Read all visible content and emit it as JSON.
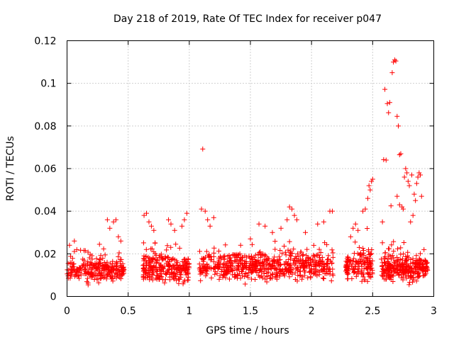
{
  "chart_data": {
    "type": "scatter",
    "title": "Day 218 of 2019, Rate Of TEC Index for receiver p047",
    "xlabel": "GPS time / hours",
    "ylabel": "ROTI / TECUs",
    "xlim": [
      0,
      3
    ],
    "ylim": [
      0,
      0.12
    ],
    "x_ticks": [
      0,
      0.5,
      1,
      1.5,
      2,
      2.5,
      3
    ],
    "x_tick_labels": [
      "0",
      "0.5",
      "1",
      "1.5",
      "2",
      "2.5",
      "3"
    ],
    "y_ticks": [
      0,
      0.02,
      0.04,
      0.06,
      0.08,
      0.1,
      0.12
    ],
    "y_tick_labels": [
      "0",
      "0.02",
      "0.04",
      "0.06",
      "0.08",
      "0.1",
      "0.12"
    ],
    "grid": true,
    "marker": "+",
    "color": "#ff0000",
    "series": [
      {
        "name": "p047",
        "segments": [
          {
            "x_start": 0.0,
            "x_end": 0.47,
            "base": 0.012,
            "spread": 0.007,
            "count": 260
          },
          {
            "x_start": 0.62,
            "x_end": 1.0,
            "base": 0.013,
            "spread": 0.008,
            "count": 260
          },
          {
            "x_start": 1.08,
            "x_end": 2.18,
            "base": 0.014,
            "spread": 0.008,
            "count": 620
          },
          {
            "x_start": 2.28,
            "x_end": 2.5,
            "base": 0.014,
            "spread": 0.009,
            "count": 150
          },
          {
            "x_start": 2.57,
            "x_end": 2.95,
            "base": 0.013,
            "spread": 0.008,
            "count": 300
          }
        ],
        "points": [
          {
            "x": 0.02,
            "y": 0.024
          },
          {
            "x": 0.06,
            "y": 0.026
          },
          {
            "x": 0.08,
            "y": 0.022
          },
          {
            "x": 0.33,
            "y": 0.036
          },
          {
            "x": 0.35,
            "y": 0.032
          },
          {
            "x": 0.38,
            "y": 0.035
          },
          {
            "x": 0.4,
            "y": 0.036
          },
          {
            "x": 0.42,
            "y": 0.028
          },
          {
            "x": 0.44,
            "y": 0.026
          },
          {
            "x": 0.63,
            "y": 0.038
          },
          {
            "x": 0.65,
            "y": 0.039
          },
          {
            "x": 0.67,
            "y": 0.035
          },
          {
            "x": 0.69,
            "y": 0.033
          },
          {
            "x": 0.71,
            "y": 0.031
          },
          {
            "x": 0.72,
            "y": 0.025
          },
          {
            "x": 0.83,
            "y": 0.036
          },
          {
            "x": 0.85,
            "y": 0.034
          },
          {
            "x": 0.88,
            "y": 0.031
          },
          {
            "x": 0.94,
            "y": 0.033
          },
          {
            "x": 0.96,
            "y": 0.036
          },
          {
            "x": 0.98,
            "y": 0.039
          },
          {
            "x": 1.1,
            "y": 0.041
          },
          {
            "x": 1.11,
            "y": 0.0692
          },
          {
            "x": 1.13,
            "y": 0.04
          },
          {
            "x": 1.15,
            "y": 0.036
          },
          {
            "x": 1.17,
            "y": 0.033
          },
          {
            "x": 1.2,
            "y": 0.037
          },
          {
            "x": 1.42,
            "y": 0.024
          },
          {
            "x": 1.5,
            "y": 0.027
          },
          {
            "x": 1.57,
            "y": 0.034
          },
          {
            "x": 1.62,
            "y": 0.033
          },
          {
            "x": 1.68,
            "y": 0.03
          },
          {
            "x": 1.75,
            "y": 0.032
          },
          {
            "x": 1.8,
            "y": 0.036
          },
          {
            "x": 1.82,
            "y": 0.042
          },
          {
            "x": 1.84,
            "y": 0.041
          },
          {
            "x": 1.86,
            "y": 0.038
          },
          {
            "x": 1.88,
            "y": 0.036
          },
          {
            "x": 1.95,
            "y": 0.03
          },
          {
            "x": 2.05,
            "y": 0.034
          },
          {
            "x": 2.1,
            "y": 0.035
          },
          {
            "x": 2.15,
            "y": 0.04
          },
          {
            "x": 2.17,
            "y": 0.04
          },
          {
            "x": 2.32,
            "y": 0.028
          },
          {
            "x": 2.34,
            "y": 0.032
          },
          {
            "x": 2.36,
            "y": 0.034
          },
          {
            "x": 2.38,
            "y": 0.031
          },
          {
            "x": 2.42,
            "y": 0.04
          },
          {
            "x": 2.44,
            "y": 0.041
          },
          {
            "x": 2.46,
            "y": 0.046
          },
          {
            "x": 2.47,
            "y": 0.052
          },
          {
            "x": 2.48,
            "y": 0.05
          },
          {
            "x": 2.49,
            "y": 0.054
          },
          {
            "x": 2.5,
            "y": 0.055
          },
          {
            "x": 2.58,
            "y": 0.035
          },
          {
            "x": 2.59,
            "y": 0.0642
          },
          {
            "x": 2.6,
            "y": 0.0972
          },
          {
            "x": 2.61,
            "y": 0.064
          },
          {
            "x": 2.62,
            "y": 0.0905
          },
          {
            "x": 2.63,
            "y": 0.0862
          },
          {
            "x": 2.64,
            "y": 0.091
          },
          {
            "x": 2.65,
            "y": 0.0425
          },
          {
            "x": 2.66,
            "y": 0.105
          },
          {
            "x": 2.67,
            "y": 0.11
          },
          {
            "x": 2.68,
            "y": 0.111
          },
          {
            "x": 2.69,
            "y": 0.1105
          },
          {
            "x": 2.7,
            "y": 0.0845
          },
          {
            "x": 2.71,
            "y": 0.08
          },
          {
            "x": 2.72,
            "y": 0.0665
          },
          {
            "x": 2.73,
            "y": 0.067
          },
          {
            "x": 2.74,
            "y": 0.042
          },
          {
            "x": 2.75,
            "y": 0.041
          },
          {
            "x": 2.76,
            "y": 0.056
          },
          {
            "x": 2.77,
            "y": 0.06
          },
          {
            "x": 2.78,
            "y": 0.058
          },
          {
            "x": 2.79,
            "y": 0.054
          },
          {
            "x": 2.8,
            "y": 0.052
          },
          {
            "x": 2.82,
            "y": 0.057
          },
          {
            "x": 2.84,
            "y": 0.048
          },
          {
            "x": 2.85,
            "y": 0.045
          },
          {
            "x": 2.86,
            "y": 0.053
          },
          {
            "x": 2.87,
            "y": 0.056
          },
          {
            "x": 2.88,
            "y": 0.058
          },
          {
            "x": 2.89,
            "y": 0.057
          },
          {
            "x": 2.9,
            "y": 0.047
          },
          {
            "x": 2.7,
            "y": 0.047
          },
          {
            "x": 2.72,
            "y": 0.043
          },
          {
            "x": 2.81,
            "y": 0.035
          },
          {
            "x": 2.83,
            "y": 0.038
          },
          {
            "x": 2.92,
            "y": 0.022
          }
        ]
      }
    ]
  }
}
